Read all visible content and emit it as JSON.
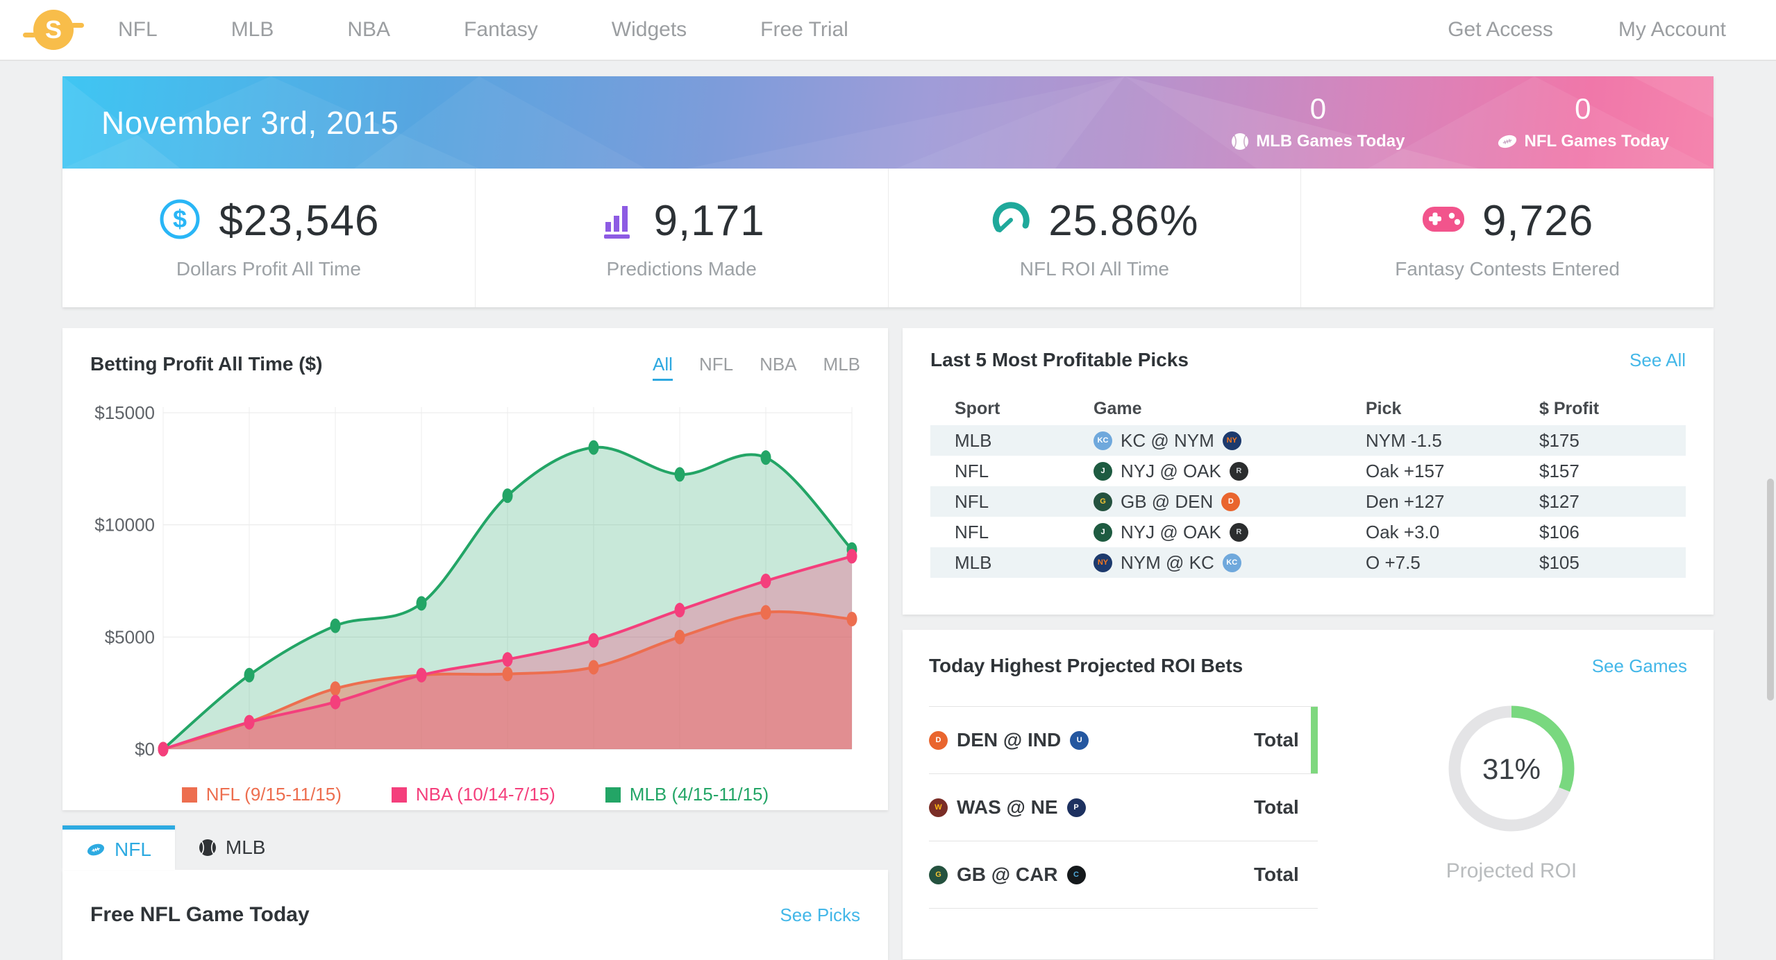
{
  "nav": {
    "logo_letter": "S",
    "items": [
      "NFL",
      "MLB",
      "NBA",
      "Fantasy",
      "Widgets",
      "Free Trial"
    ],
    "right_items": [
      "Get Access",
      "My Account"
    ]
  },
  "hero": {
    "date": "November 3rd, 2015",
    "counters": [
      {
        "value": "0",
        "label": "MLB Games Today",
        "icon": "baseball-icon"
      },
      {
        "value": "0",
        "label": "NFL Games Today",
        "icon": "football-icon"
      }
    ]
  },
  "stats": [
    {
      "value": "$23,546",
      "label": "Dollars Profit All Time",
      "icon": "dollar-circle-icon",
      "color": "#29b6f6"
    },
    {
      "value": "9,171",
      "label": "Predictions Made",
      "icon": "bar-chart-icon",
      "color": "#8d5be3"
    },
    {
      "value": "25.86%",
      "label": "NFL ROI All Time",
      "icon": "gauge-icon",
      "color": "#1fa99b"
    },
    {
      "value": "9,726",
      "label": "Fantasy Contests Entered",
      "icon": "gamepad-icon",
      "color": "#f2548c"
    }
  ],
  "chart_card": {
    "title": "Betting Profit All Time ($)",
    "tabs": [
      "All",
      "NFL",
      "NBA",
      "MLB"
    ],
    "active_tab": "All"
  },
  "chart_data": {
    "type": "area",
    "title": "Betting Profit All Time ($)",
    "x_count": 9,
    "x_labels": [],
    "ylim": [
      0,
      15000
    ],
    "yticks": [
      {
        "value": 15000,
        "label": "$15000"
      },
      {
        "value": 10000,
        "label": "$10000"
      },
      {
        "value": 5000,
        "label": "$5000"
      },
      {
        "value": 0,
        "label": "$0"
      }
    ],
    "grid": true,
    "legend_position": "bottom",
    "series": [
      {
        "name": "NFL",
        "legend": "NFL (9/15-11/15)",
        "color": "#ed6e4f",
        "fill_opacity": 0.45,
        "values": [
          0,
          1200,
          2700,
          3300,
          3350,
          3650,
          5000,
          6100,
          5800
        ]
      },
      {
        "name": "NBA",
        "legend": "NBA (10/14-7/15)",
        "color": "#f43f7c",
        "fill_opacity": 0.3,
        "values": [
          0,
          1200,
          2100,
          3300,
          4000,
          4850,
          6200,
          7500,
          8600
        ]
      },
      {
        "name": "MLB",
        "legend": "MLB (4/15-11/15)",
        "color": "#23a566",
        "fill_opacity": 0.25,
        "values": [
          0,
          3300,
          5500,
          6500,
          11300,
          13450,
          12250,
          13000,
          8900
        ]
      }
    ]
  },
  "picks": {
    "title": "Last 5 Most Profitable Picks",
    "link": "See All",
    "columns": [
      "Sport",
      "Game",
      "Pick",
      "$ Profit"
    ],
    "rows": [
      {
        "sport": "MLB",
        "away": "KC",
        "home": "NYM",
        "pick": "NYM -1.5",
        "profit": "$175"
      },
      {
        "sport": "NFL",
        "away": "NYJ",
        "home": "OAK",
        "pick": "Oak +157",
        "profit": "$157"
      },
      {
        "sport": "NFL",
        "away": "GB",
        "home": "DEN",
        "pick": "Den +127",
        "profit": "$127"
      },
      {
        "sport": "NFL",
        "away": "NYJ",
        "home": "OAK",
        "pick": "Oak +3.0",
        "profit": "$106"
      },
      {
        "sport": "MLB",
        "away": "NYM",
        "home": "KC",
        "pick": "O +7.5",
        "profit": "$105"
      }
    ]
  },
  "roi_bets": {
    "title": "Today Highest Projected ROI Bets",
    "link": "See Games",
    "rows": [
      {
        "away": "DEN",
        "home": "IND",
        "bet": "Total",
        "highlighted": true
      },
      {
        "away": "WAS",
        "home": "NE",
        "bet": "Total",
        "highlighted": false
      },
      {
        "away": "GB",
        "home": "CAR",
        "bet": "Total",
        "highlighted": false
      }
    ],
    "donut": {
      "percent": 31,
      "label": "31%",
      "caption": "Projected ROI",
      "color": "#79d87f",
      "track": "#e4e4e6"
    }
  },
  "bottom": {
    "tabs": [
      {
        "label": "NFL",
        "active": true,
        "icon": "football-icon"
      },
      {
        "label": "MLB",
        "active": false,
        "icon": "baseball-icon"
      }
    ],
    "heading": "Free NFL Game Today",
    "link": "See Picks"
  },
  "teams": {
    "KC": {
      "bg": "#6fa8dc",
      "fg": "#ffffff",
      "initial": "KC"
    },
    "NYM": {
      "bg": "#1d3a6d",
      "fg": "#f47721",
      "initial": "NY"
    },
    "NYJ": {
      "bg": "#1e5b41",
      "fg": "#ffffff",
      "initial": "J"
    },
    "OAK": {
      "bg": "#2b2d2e",
      "fg": "#c7ccce",
      "initial": "R"
    },
    "GB": {
      "bg": "#24523f",
      "fg": "#f5c533",
      "initial": "G"
    },
    "DEN": {
      "bg": "#e9652e",
      "fg": "#ffffff",
      "initial": "D"
    },
    "IND": {
      "bg": "#2457a0",
      "fg": "#ffffff",
      "initial": "U"
    },
    "WAS": {
      "bg": "#7a2d26",
      "fg": "#ffb612",
      "initial": "W"
    },
    "NE": {
      "bg": "#1d3160",
      "fg": "#ffffff",
      "initial": "P"
    },
    "CAR": {
      "bg": "#15191c",
      "fg": "#4fa8d8",
      "initial": "C"
    }
  }
}
